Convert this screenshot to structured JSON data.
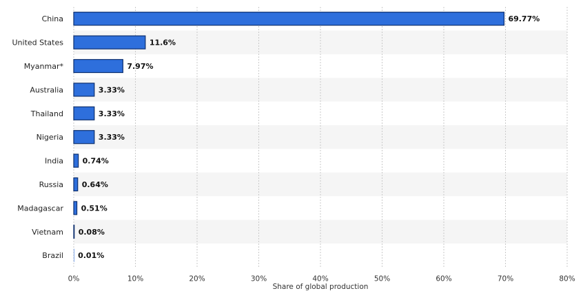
{
  "chart_data": {
    "type": "bar",
    "orientation": "horizontal",
    "categories": [
      "China",
      "United States",
      "Myanmar*",
      "Australia",
      "Thailand",
      "Nigeria",
      "India",
      "Russia",
      "Madagascar",
      "Vietnam",
      "Brazil"
    ],
    "values": [
      69.77,
      11.6,
      7.97,
      3.33,
      3.33,
      3.33,
      0.74,
      0.64,
      0.51,
      0.08,
      0.01
    ],
    "value_labels": [
      "69.77%",
      "11.6%",
      "7.97%",
      "3.33%",
      "3.33%",
      "3.33%",
      "0.74%",
      "0.64%",
      "0.51%",
      "0.08%",
      "0.01%"
    ],
    "xlabel": "Share of global production",
    "ylabel": "",
    "xlim": [
      0,
      80
    ],
    "x_ticks": [
      0,
      10,
      20,
      30,
      40,
      50,
      60,
      70,
      80
    ],
    "x_tick_labels": [
      "0%",
      "10%",
      "20%",
      "30%",
      "40%",
      "50%",
      "60%",
      "70%",
      "80%"
    ],
    "grid": true,
    "bar_color": "#2e6fdc",
    "bar_edge_color": "#0d2f6e",
    "row_stripe_color": "#f5f5f5"
  }
}
